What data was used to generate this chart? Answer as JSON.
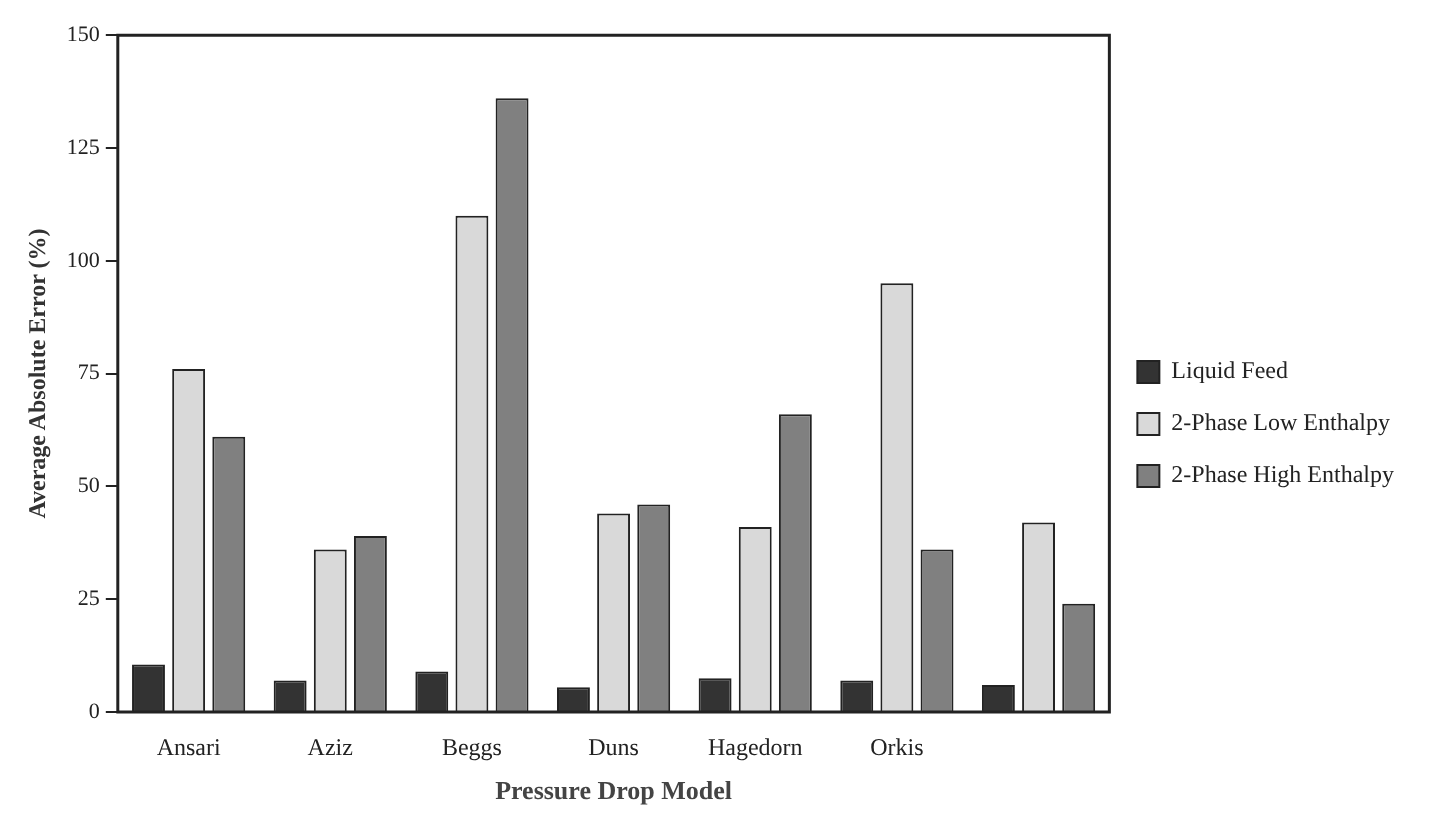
{
  "chart_data": {
    "type": "bar",
    "xlabel": "Pressure Drop Model",
    "ylabel": "Average Absolute Error (%)",
    "categories": [
      "Ansari",
      "Aziz",
      "Beggs",
      "Duns",
      "Hagedorn",
      "Orkis",
      null
    ],
    "series": [
      {
        "name": "Liquid Feed",
        "color": "#333333",
        "values": [
          10.5,
          7,
          9,
          5.5,
          7.5,
          7,
          6
        ]
      },
      {
        "name": "2-Phase Low Enthalpy",
        "color": "#d9d9d9",
        "values": [
          76,
          36,
          110,
          44,
          41,
          95,
          42
        ]
      },
      {
        "name": "2-Phase High Enthalpy",
        "color": "#808080",
        "values": [
          61,
          39,
          136,
          46,
          66,
          36,
          24
        ]
      }
    ],
    "ylim": [
      0,
      150
    ],
    "yticks": [
      0,
      25,
      50,
      75,
      100,
      125,
      150
    ],
    "grid": false,
    "legend": "right"
  }
}
